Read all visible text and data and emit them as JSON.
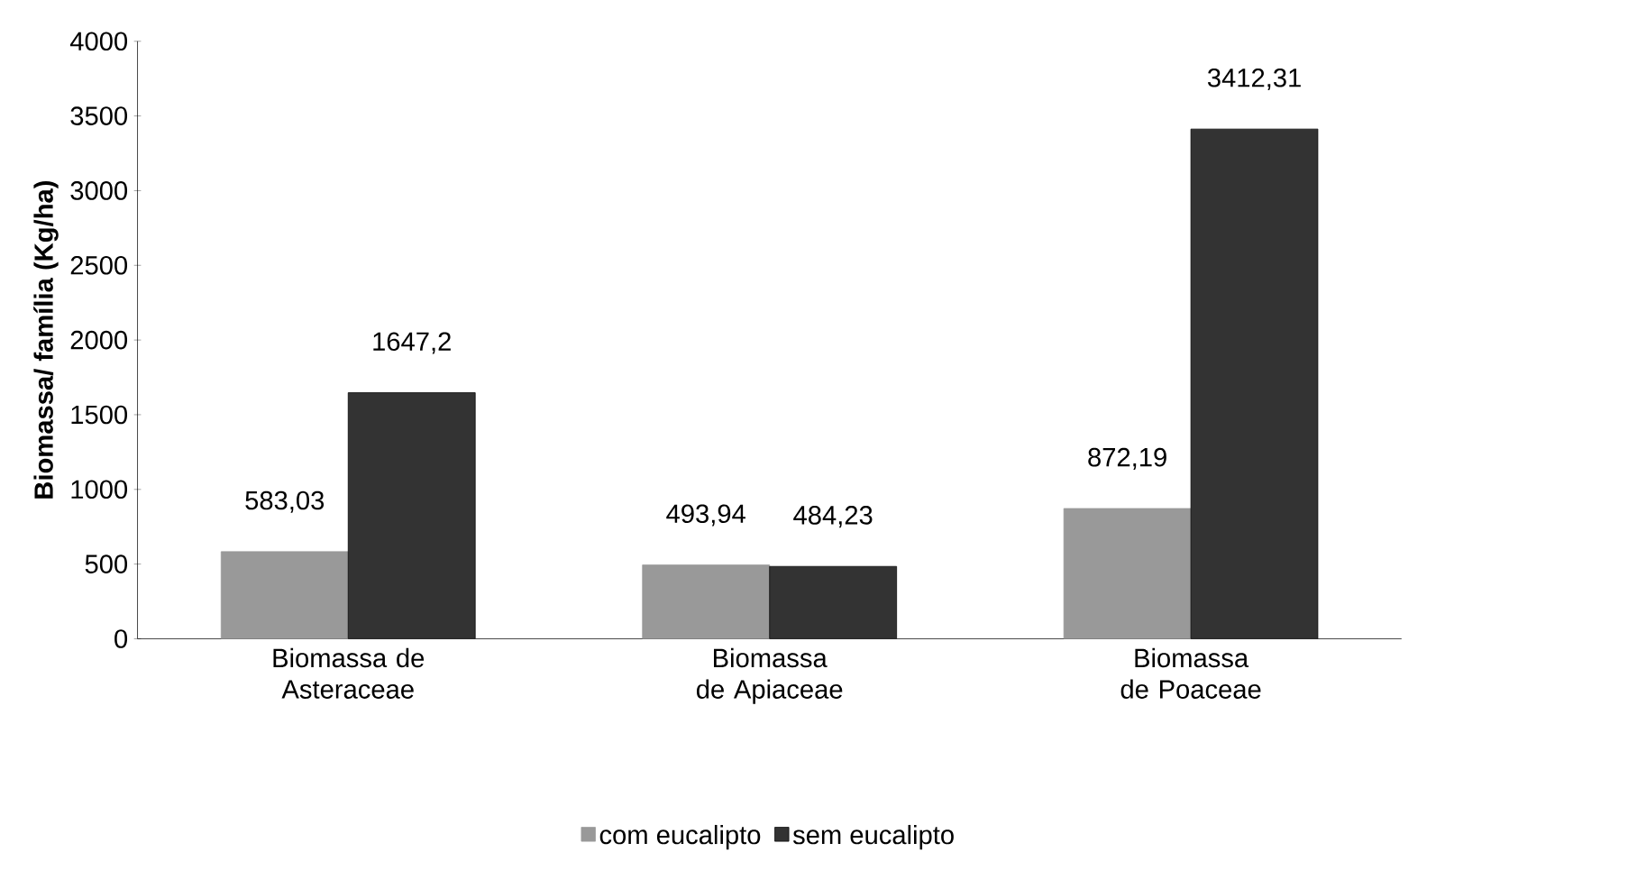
{
  "chart_data": {
    "type": "bar",
    "ylabel": "Biomassa/ família (Kg/ha)",
    "categories": [
      "Biomassa de Asteraceae",
      "Biomassa de Apiaceae",
      "Biomassa de Poaceae"
    ],
    "series": [
      {
        "name": "com eucalipto",
        "color": "#999999",
        "values": [
          583.03,
          493.94,
          872.19
        ],
        "value_labels": [
          "583,03",
          "493,94",
          "872,19"
        ]
      },
      {
        "name": "sem eucalipto",
        "color": "#333333",
        "values": [
          1647.2,
          484.23,
          3412.31
        ],
        "value_labels": [
          "1647,2",
          "484,23",
          "3412,31"
        ]
      }
    ],
    "ylim": [
      0,
      4000
    ],
    "yticks": [
      0,
      500,
      1000,
      1500,
      2000,
      2500,
      3000,
      3500,
      4000
    ],
    "grid": false,
    "legend": "bottom"
  }
}
